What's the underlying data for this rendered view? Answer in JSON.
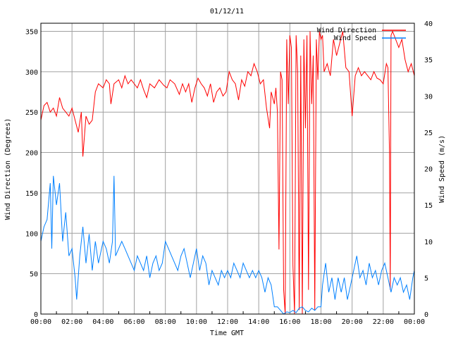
{
  "chart_data": {
    "type": "line",
    "title": "01/12/11",
    "xlabel": "Time GMT",
    "ylabel": "Wind Direction (Degrees)",
    "y2label": "Wind Speed (m/s)",
    "xlim": [
      0,
      24
    ],
    "ylim": [
      0,
      360
    ],
    "y2lim": [
      0,
      40
    ],
    "grid": true,
    "legend_position": "top-right",
    "x_ticks": [
      "00:00",
      "02:00",
      "04:00",
      "06:00",
      "08:00",
      "10:00",
      "12:00",
      "14:00",
      "16:00",
      "18:00",
      "20:00",
      "22:00",
      "00:00"
    ],
    "y_ticks": [
      "0",
      "50",
      "100",
      "150",
      "200",
      "250",
      "300",
      "350"
    ],
    "y2_ticks": [
      "0",
      "5",
      "10",
      "15",
      "20",
      "25",
      "30",
      "35",
      "40"
    ],
    "series": [
      {
        "name": "Wind Direction",
        "color": "#ff0000",
        "axis": "left",
        "points": [
          [
            0,
            240
          ],
          [
            0.2,
            258
          ],
          [
            0.4,
            262
          ],
          [
            0.6,
            250
          ],
          [
            0.8,
            255
          ],
          [
            1,
            245
          ],
          [
            1.2,
            268
          ],
          [
            1.4,
            255
          ],
          [
            1.6,
            250
          ],
          [
            1.8,
            245
          ],
          [
            2,
            255
          ],
          [
            2.2,
            240
          ],
          [
            2.4,
            225
          ],
          [
            2.6,
            250
          ],
          [
            2.7,
            195
          ],
          [
            2.9,
            245
          ],
          [
            3.1,
            235
          ],
          [
            3.3,
            240
          ],
          [
            3.5,
            275
          ],
          [
            3.7,
            285
          ],
          [
            4,
            280
          ],
          [
            4.2,
            290
          ],
          [
            4.4,
            285
          ],
          [
            4.5,
            260
          ],
          [
            4.7,
            285
          ],
          [
            5,
            290
          ],
          [
            5.2,
            280
          ],
          [
            5.4,
            295
          ],
          [
            5.6,
            285
          ],
          [
            5.8,
            290
          ],
          [
            6,
            285
          ],
          [
            6.2,
            280
          ],
          [
            6.4,
            290
          ],
          [
            6.6,
            278
          ],
          [
            6.8,
            268
          ],
          [
            7,
            285
          ],
          [
            7.3,
            280
          ],
          [
            7.6,
            290
          ],
          [
            7.9,
            283
          ],
          [
            8.1,
            280
          ],
          [
            8.3,
            290
          ],
          [
            8.6,
            285
          ],
          [
            8.9,
            272
          ],
          [
            9.1,
            285
          ],
          [
            9.3,
            275
          ],
          [
            9.5,
            285
          ],
          [
            9.7,
            262
          ],
          [
            9.9,
            280
          ],
          [
            10.1,
            292
          ],
          [
            10.3,
            285
          ],
          [
            10.5,
            280
          ],
          [
            10.7,
            270
          ],
          [
            10.9,
            285
          ],
          [
            11.1,
            262
          ],
          [
            11.3,
            275
          ],
          [
            11.5,
            280
          ],
          [
            11.7,
            270
          ],
          [
            11.9,
            275
          ],
          [
            12.1,
            300
          ],
          [
            12.3,
            290
          ],
          [
            12.5,
            285
          ],
          [
            12.7,
            265
          ],
          [
            12.9,
            290
          ],
          [
            13.1,
            282
          ],
          [
            13.3,
            300
          ],
          [
            13.5,
            295
          ],
          [
            13.7,
            310
          ],
          [
            13.9,
            300
          ],
          [
            14.1,
            285
          ],
          [
            14.3,
            290
          ],
          [
            14.5,
            255
          ],
          [
            14.7,
            230
          ],
          [
            14.8,
            275
          ],
          [
            15,
            260
          ],
          [
            15.1,
            280
          ],
          [
            15.2,
            250
          ],
          [
            15.3,
            80
          ],
          [
            15.4,
            300
          ],
          [
            15.5,
            290
          ],
          [
            15.6,
            30
          ],
          [
            15.7,
            0
          ],
          [
            15.8,
            340
          ],
          [
            15.9,
            260
          ],
          [
            16,
            345
          ],
          [
            16.1,
            330
          ],
          [
            16.2,
            60
          ],
          [
            16.3,
            0
          ],
          [
            16.4,
            345
          ],
          [
            16.5,
            300
          ],
          [
            16.6,
            5
          ],
          [
            16.7,
            320
          ],
          [
            16.8,
            0
          ],
          [
            16.9,
            340
          ],
          [
            17,
            230
          ],
          [
            17.1,
            345
          ],
          [
            17.2,
            30
          ],
          [
            17.3,
            350
          ],
          [
            17.4,
            260
          ],
          [
            17.5,
            320
          ],
          [
            17.6,
            5
          ],
          [
            17.7,
            340
          ],
          [
            17.8,
            290
          ],
          [
            17.9,
            350
          ],
          [
            18,
            340
          ],
          [
            18.1,
            345
          ],
          [
            18.2,
            300
          ],
          [
            18.4,
            310
          ],
          [
            18.6,
            295
          ],
          [
            18.8,
            340
          ],
          [
            19,
            320
          ],
          [
            19.2,
            335
          ],
          [
            19.4,
            350
          ],
          [
            19.6,
            305
          ],
          [
            19.8,
            300
          ],
          [
            20,
            245
          ],
          [
            20.2,
            295
          ],
          [
            20.4,
            305
          ],
          [
            20.6,
            295
          ],
          [
            20.8,
            300
          ],
          [
            21,
            295
          ],
          [
            21.2,
            290
          ],
          [
            21.4,
            300
          ],
          [
            21.6,
            292
          ],
          [
            21.8,
            290
          ],
          [
            22,
            285
          ],
          [
            22.2,
            310
          ],
          [
            22.3,
            305
          ],
          [
            22.4,
            200
          ],
          [
            22.45,
            30
          ],
          [
            22.5,
            345
          ],
          [
            22.6,
            350
          ],
          [
            22.8,
            340
          ],
          [
            23,
            330
          ],
          [
            23.2,
            340
          ],
          [
            23.4,
            315
          ],
          [
            23.6,
            300
          ],
          [
            23.8,
            310
          ],
          [
            24,
            295
          ]
        ]
      },
      {
        "name": "Wind Speed",
        "color": "#0080ff",
        "axis": "right",
        "points": [
          [
            0,
            10
          ],
          [
            0.2,
            12
          ],
          [
            0.4,
            13
          ],
          [
            0.6,
            18
          ],
          [
            0.7,
            9
          ],
          [
            0.8,
            19
          ],
          [
            1,
            15
          ],
          [
            1.2,
            18
          ],
          [
            1.4,
            10
          ],
          [
            1.6,
            14
          ],
          [
            1.8,
            8
          ],
          [
            2,
            9
          ],
          [
            2.2,
            5
          ],
          [
            2.3,
            2
          ],
          [
            2.5,
            8
          ],
          [
            2.7,
            12
          ],
          [
            2.9,
            7
          ],
          [
            3.1,
            11
          ],
          [
            3.3,
            6
          ],
          [
            3.5,
            10
          ],
          [
            3.7,
            7
          ],
          [
            4,
            10
          ],
          [
            4.2,
            9
          ],
          [
            4.4,
            7
          ],
          [
            4.6,
            10
          ],
          [
            4.7,
            19
          ],
          [
            4.8,
            8
          ],
          [
            5,
            9
          ],
          [
            5.2,
            10
          ],
          [
            5.4,
            9
          ],
          [
            5.6,
            8
          ],
          [
            5.8,
            7
          ],
          [
            6,
            6
          ],
          [
            6.2,
            8
          ],
          [
            6.4,
            7
          ],
          [
            6.6,
            6
          ],
          [
            6.8,
            8
          ],
          [
            7,
            5
          ],
          [
            7.2,
            7
          ],
          [
            7.4,
            8
          ],
          [
            7.6,
            6
          ],
          [
            7.8,
            7
          ],
          [
            8,
            10
          ],
          [
            8.2,
            9
          ],
          [
            8.4,
            8
          ],
          [
            8.6,
            7
          ],
          [
            8.8,
            6
          ],
          [
            9,
            8
          ],
          [
            9.2,
            9
          ],
          [
            9.4,
            7
          ],
          [
            9.6,
            5
          ],
          [
            9.8,
            7
          ],
          [
            10,
            9
          ],
          [
            10.2,
            6
          ],
          [
            10.4,
            8
          ],
          [
            10.6,
            7
          ],
          [
            10.8,
            4
          ],
          [
            11,
            6
          ],
          [
            11.2,
            5
          ],
          [
            11.4,
            4
          ],
          [
            11.6,
            6
          ],
          [
            11.8,
            5
          ],
          [
            12,
            6
          ],
          [
            12.2,
            5
          ],
          [
            12.4,
            7
          ],
          [
            12.6,
            6
          ],
          [
            12.8,
            5
          ],
          [
            13,
            7
          ],
          [
            13.2,
            6
          ],
          [
            13.4,
            5
          ],
          [
            13.6,
            6
          ],
          [
            13.8,
            5
          ],
          [
            14,
            6
          ],
          [
            14.2,
            5
          ],
          [
            14.4,
            3
          ],
          [
            14.6,
            5
          ],
          [
            14.8,
            4
          ],
          [
            15,
            1
          ],
          [
            15.2,
            1
          ],
          [
            15.4,
            0.5
          ],
          [
            15.6,
            0
          ],
          [
            15.8,
            0.3
          ],
          [
            16,
            0.2
          ],
          [
            16.2,
            0.5
          ],
          [
            16.4,
            0.2
          ],
          [
            16.6,
            0.8
          ],
          [
            16.8,
            1
          ],
          [
            17,
            0.5
          ],
          [
            17.2,
            0.3
          ],
          [
            17.4,
            0.8
          ],
          [
            17.6,
            0.5
          ],
          [
            17.8,
            1
          ],
          [
            18,
            1
          ],
          [
            18.1,
            4
          ],
          [
            18.3,
            7
          ],
          [
            18.5,
            3
          ],
          [
            18.7,
            5
          ],
          [
            18.9,
            2
          ],
          [
            19.1,
            5
          ],
          [
            19.3,
            3
          ],
          [
            19.5,
            5
          ],
          [
            19.7,
            2
          ],
          [
            19.9,
            4
          ],
          [
            20.1,
            6
          ],
          [
            20.3,
            8
          ],
          [
            20.5,
            5
          ],
          [
            20.7,
            6
          ],
          [
            20.9,
            4
          ],
          [
            21.1,
            7
          ],
          [
            21.3,
            5
          ],
          [
            21.5,
            6
          ],
          [
            21.7,
            4
          ],
          [
            21.9,
            6
          ],
          [
            22.1,
            7
          ],
          [
            22.3,
            5
          ],
          [
            22.5,
            3
          ],
          [
            22.7,
            5
          ],
          [
            22.9,
            4
          ],
          [
            23.1,
            5
          ],
          [
            23.3,
            3
          ],
          [
            23.5,
            4
          ],
          [
            23.7,
            2
          ],
          [
            23.9,
            5
          ],
          [
            24,
            6
          ]
        ]
      }
    ]
  }
}
